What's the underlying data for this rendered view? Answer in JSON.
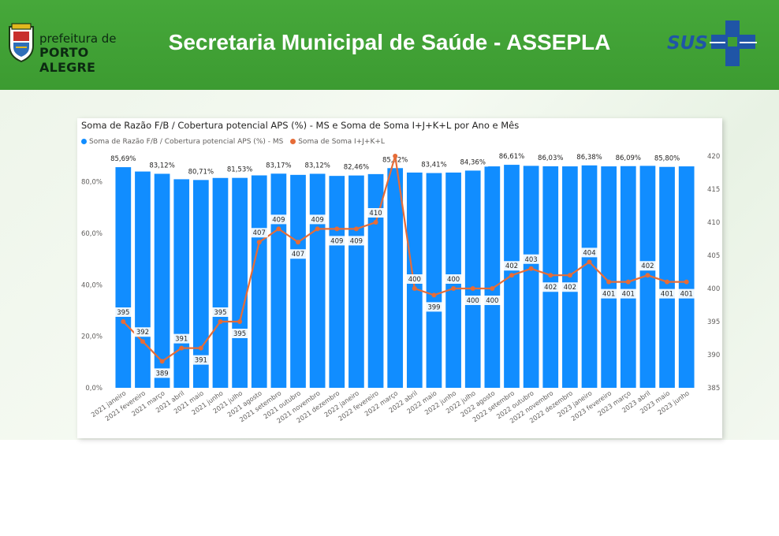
{
  "header": {
    "title": "Secretaria Municipal de Saúde - ASSEPLA",
    "logo_left_line1": "prefeitura de",
    "logo_left_line2": "PORTO ALEGRE",
    "logo_right_text": "SUS"
  },
  "colors": {
    "header_green": "#3f9f34",
    "bar_blue": "#118dff",
    "line_orange": "#e66c37"
  },
  "chart_data": {
    "type": "bar+line",
    "title": "Soma de Razão F/B / Cobertura potencial APS (%) - MS e Soma de Soma I+J+K+L por Ano e Mês",
    "legend_position": "top-left",
    "categories": [
      "2021 janeiro",
      "2021 fevereiro",
      "2021 março",
      "2021 abril",
      "2021 maio",
      "2021 junho",
      "2021 julho",
      "2021 agosto",
      "2021 setembro",
      "2021 outubro",
      "2021 novembro",
      "2021 dezembro",
      "2022 janeiro",
      "2022 fevereiro",
      "2022 março",
      "2022 abril",
      "2022 maio",
      "2022 junho",
      "2022 julho",
      "2022 agosto",
      "2022 setembro",
      "2022 outubro",
      "2022 novembro",
      "2022 dezembro",
      "2023 janeiro",
      "2023 fevereiro",
      "2023 março",
      "2023 abril",
      "2023 maio",
      "2023 junho"
    ],
    "series": [
      {
        "name": "Soma de Razão F/B / Cobertura potencial APS (%) - MS",
        "type": "bar",
        "axis": "left",
        "values": [
          85.69,
          84.0,
          83.12,
          81.0,
          80.71,
          81.5,
          81.53,
          82.5,
          83.17,
          82.7,
          83.12,
          82.3,
          82.46,
          83.0,
          85.32,
          83.6,
          83.41,
          83.6,
          84.36,
          86.0,
          86.61,
          86.2,
          86.03,
          86.0,
          86.38,
          86.0,
          86.09,
          86.2,
          85.8,
          86.0
        ],
        "labels": [
          "85,69%",
          "",
          "83,12%",
          "",
          "80,71%",
          "",
          "81,53%",
          "",
          "83,17%",
          "",
          "83,12%",
          "",
          "82,46%",
          "",
          "85,32%",
          "",
          "83,41%",
          "",
          "84,36%",
          "",
          "86,61%",
          "",
          "86,03%",
          "",
          "86,38%",
          "",
          "86,09%",
          "",
          "85,80%",
          ""
        ]
      },
      {
        "name": "Soma de Soma I+J+K+L",
        "type": "line",
        "axis": "right",
        "values": [
          395,
          392,
          389,
          391,
          391,
          395,
          395,
          407,
          409,
          407,
          409,
          409,
          409,
          410,
          420,
          400,
          399,
          400,
          400,
          400,
          402,
          403,
          402,
          402,
          404,
          401,
          401,
          402,
          401,
          401
        ],
        "labels": [
          "395",
          "392",
          "389",
          "391",
          "391",
          "395",
          "395",
          "407",
          "409",
          "407",
          "409",
          "409",
          "409",
          "410",
          "",
          "400",
          "399",
          "400",
          "400",
          "400",
          "402",
          "403",
          "402",
          "402",
          "404",
          "401",
          "401",
          "402",
          "401",
          "401"
        ]
      }
    ],
    "y_left": {
      "min": 0,
      "max": 90,
      "ticks": [
        "0,0%",
        "20,0%",
        "40,0%",
        "60,0%",
        "80,0%"
      ]
    },
    "y_right": {
      "min": 385,
      "max": 420,
      "ticks": [
        "385",
        "390",
        "395",
        "400",
        "405",
        "410",
        "415",
        "420"
      ]
    }
  }
}
